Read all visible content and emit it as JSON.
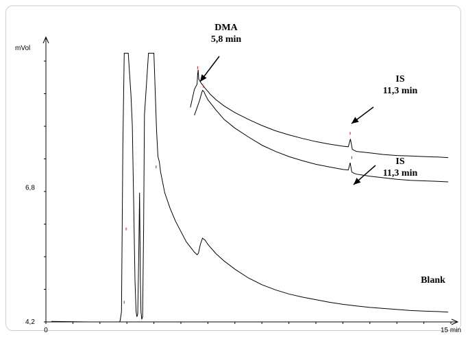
{
  "chart_data": {
    "type": "line",
    "title": "",
    "xlabel": "",
    "ylabel": "mVol",
    "x_unit_label": "min",
    "xlim": [
      0,
      15
    ],
    "ylim": [
      4.2,
      9.5
    ],
    "x_ticks": [
      {
        "value": 0,
        "label": "0"
      },
      {
        "value": 15,
        "label": "15 min"
      }
    ],
    "y_ticks": [
      {
        "value": 4.2,
        "label": "4,2"
      },
      {
        "value": 6.8,
        "label": "6,8"
      }
    ],
    "grid": false,
    "series": [
      {
        "x": [
          0.2,
          1.5,
          2.5,
          2.72,
          2.75,
          2.8,
          2.85,
          2.9,
          3.05,
          3.1,
          3.15,
          3.2,
          3.25,
          3.3,
          3.34,
          3.37,
          3.4,
          3.44,
          3.47,
          3.5,
          3.52,
          3.55,
          3.58,
          3.62,
          3.65,
          3.8,
          4.0,
          4.1,
          4.15,
          4.2,
          4.25,
          4.4,
          4.6,
          4.8,
          5.0,
          5.2,
          5.5,
          5.6,
          5.65,
          5.72,
          5.8,
          5.9,
          6.0,
          6.3,
          6.6,
          7.0,
          7.5,
          8.0,
          8.5,
          9.0,
          9.5,
          10.0,
          10.5,
          11.0,
          11.5,
          12.0,
          12.5,
          13.0,
          13.5,
          14.0,
          14.5,
          14.9
        ],
        "y": [
          4.21,
          4.2,
          4.2,
          4.2,
          4.22,
          4.4,
          7.6,
          9.4,
          9.4,
          9.0,
          8.6,
          8.0,
          6.5,
          5.0,
          4.4,
          4.3,
          4.35,
          5.5,
          6.7,
          5.0,
          4.4,
          4.25,
          4.3,
          6.0,
          8.2,
          9.4,
          9.4,
          7.9,
          7.4,
          7.3,
          7.1,
          6.7,
          6.4,
          6.15,
          5.95,
          5.75,
          5.55,
          5.5,
          5.53,
          5.7,
          5.82,
          5.78,
          5.7,
          5.52,
          5.38,
          5.22,
          5.05,
          4.92,
          4.82,
          4.74,
          4.68,
          4.63,
          4.58,
          4.54,
          4.51,
          4.48,
          4.46,
          4.44,
          4.42,
          4.41,
          4.4,
          4.39
        ]
      },
      {
        "x": [
          5.5,
          5.7,
          5.75,
          5.8,
          5.85,
          5.9,
          6.0,
          6.3,
          6.6,
          7.0,
          7.5,
          8.0,
          8.5,
          9.0,
          9.5,
          10.0,
          10.5,
          11.0,
          11.2,
          11.27,
          11.33,
          11.4,
          11.5,
          12.0,
          12.5,
          13.0,
          13.5,
          14.0,
          14.5,
          14.9
        ],
        "y": [
          8.2,
          8.5,
          8.6,
          8.68,
          8.66,
          8.6,
          8.5,
          8.3,
          8.12,
          7.95,
          7.78,
          7.62,
          7.5,
          7.4,
          7.32,
          7.25,
          7.2,
          7.15,
          7.14,
          7.28,
          7.1,
          7.08,
          7.06,
          7.02,
          6.99,
          6.96,
          6.94,
          6.93,
          6.92,
          6.91
        ]
      },
      {
        "x": [
          5.35,
          5.5,
          5.6,
          5.62,
          5.64,
          5.66,
          5.75,
          5.9,
          6.1,
          6.3,
          6.6,
          7.0,
          7.5,
          8.0,
          8.5,
          9.0,
          9.5,
          10.0,
          10.5,
          11.0,
          11.2,
          11.28,
          11.35,
          11.42,
          11.5,
          12.0,
          12.5,
          13.0,
          13.5,
          14.0,
          14.5,
          14.9
        ],
        "y": [
          8.35,
          8.7,
          8.8,
          8.98,
          9.08,
          8.9,
          8.82,
          8.72,
          8.6,
          8.5,
          8.38,
          8.25,
          8.12,
          8.0,
          7.9,
          7.82,
          7.75,
          7.69,
          7.64,
          7.6,
          7.59,
          7.74,
          7.54,
          7.52,
          7.5,
          7.47,
          7.44,
          7.42,
          7.41,
          7.4,
          7.39,
          7.38
        ]
      }
    ],
    "annotations": [
      {
        "line1": "DMA",
        "line2": "5,8 min"
      },
      {
        "line1": "IS",
        "line2": "11,3 min"
      },
      {
        "line1": "IS",
        "line2": "11,3 min"
      },
      {
        "line1": "Blank",
        "line2": ""
      }
    ],
    "peak_markers": [
      {
        "x": 2.9,
        "y": 4.58
      },
      {
        "x": 2.97,
        "y": 6.0
      },
      {
        "x": 4.08,
        "y": 7.2
      },
      {
        "x": 5.62,
        "y": 9.12
      },
      {
        "x": 5.83,
        "y": 8.76
      },
      {
        "x": 11.27,
        "y": 7.85
      },
      {
        "x": 11.33,
        "y": 7.38
      }
    ],
    "line_color": "#000000",
    "marker_color": "#e03030"
  }
}
